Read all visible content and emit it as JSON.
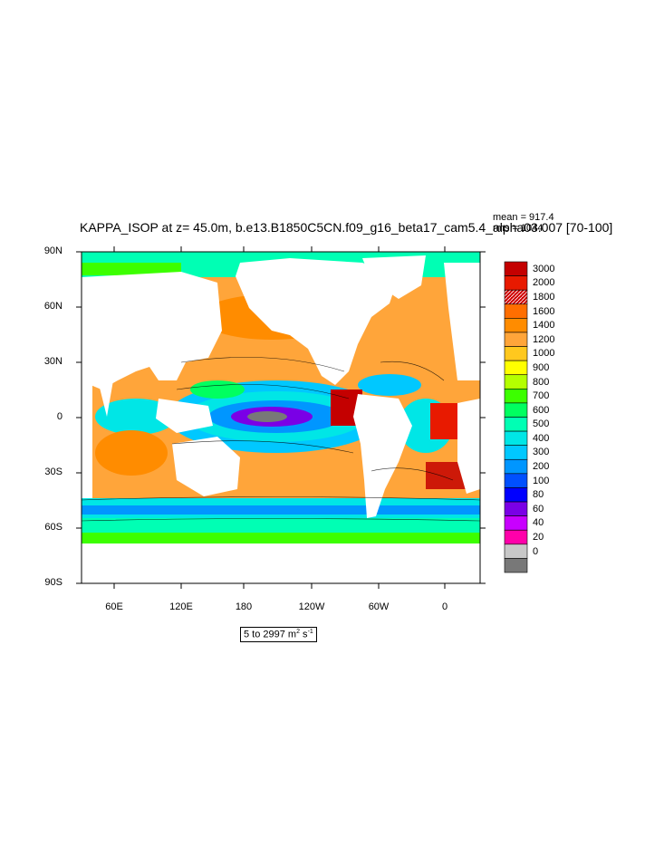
{
  "title": "KAPPA_ISOP at z=  45.0m, b.e13.B1850C5CN.f09_g16_beta17_cam5.4_alpha03.007 [70-100]",
  "stats": {
    "mean_label": "mean = 917.4",
    "rms_label": "rms = 1044"
  },
  "axes": {
    "y_ticks": [
      "90N",
      "60N",
      "30N",
      "0",
      "30S",
      "60S",
      "90S"
    ],
    "x_ticks": [
      "60E",
      "120E",
      "180",
      "120W",
      "60W",
      "0"
    ]
  },
  "colorbar": {
    "labels": [
      "3000",
      "2000",
      "1800",
      "1600",
      "1400",
      "1200",
      "1000",
      "900",
      "800",
      "700",
      "600",
      "500",
      "400",
      "300",
      "200",
      "100",
      "80",
      "60",
      "40",
      "20",
      "0"
    ],
    "colors": [
      "#c40000",
      "#e81a00",
      "#ff3a1a",
      "#ff6e00",
      "#ff8c00",
      "#ffa53a",
      "#ffc81e",
      "#ffff00",
      "#b4ff00",
      "#3cff00",
      "#00ff60",
      "#00ffb4",
      "#00e6e6",
      "#00c8ff",
      "#0096ff",
      "#0050ff",
      "#0000ff",
      "#7a00e6",
      "#c800ff",
      "#ff00aa",
      "#c8c8c8",
      "#787878"
    ]
  },
  "range": {
    "prefix": "5 to 2997 m",
    "exp1": "2",
    "mid": " s",
    "exp2": "-1"
  }
}
